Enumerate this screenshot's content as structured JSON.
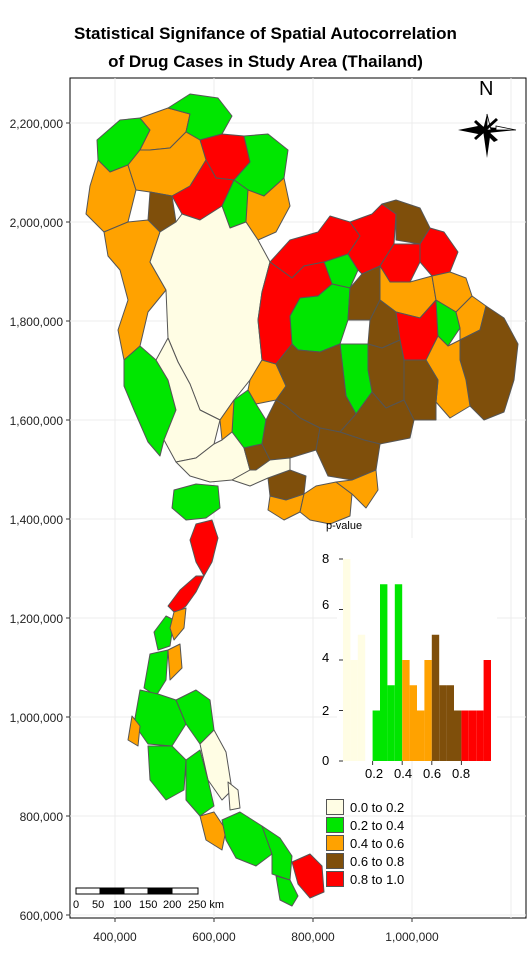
{
  "title": {
    "line1": "Statistical Signifance of Spatial Autocorrelation",
    "line2": "of Drug Cases in Study Area (Thailand)"
  },
  "north_arrow": {
    "label": "N"
  },
  "y_ticks": [
    "2,200,000",
    "2,000,000",
    "1,800,000",
    "1,600,000",
    "1,400,000",
    "1,200,000",
    "1,000,000",
    "800,000",
    "600,000"
  ],
  "x_ticks": [
    "400,000",
    "600,000",
    "800,000",
    "1,000,000"
  ],
  "legend": {
    "items": [
      {
        "label": "0.0 to 0.2",
        "color": "#fffde4"
      },
      {
        "label": "0.2 to 0.4",
        "color": "#00e600"
      },
      {
        "label": "0.4 to 0.6",
        "color": "#ffa200"
      },
      {
        "label": "0.6 to 0.8",
        "color": "#7f4f0b"
      },
      {
        "label": "0.8 to 1.0",
        "color": "#ff0000"
      }
    ]
  },
  "histogram": {
    "title": "p-value",
    "y_ticks": [
      "8",
      "6",
      "4",
      "2",
      "0"
    ],
    "x_ticks": [
      "0.2",
      "0.4",
      "0.6",
      "0.8"
    ]
  },
  "scale_bar": {
    "labels": [
      "0",
      "50",
      "100",
      "150",
      "200",
      "250 km"
    ]
  },
  "chart_data": {
    "type": "histogram",
    "title": "p-value",
    "xlim": [
      0,
      1
    ],
    "ylim": [
      0,
      8.5
    ],
    "bin_width": 0.05,
    "bins": [
      {
        "x0": 0.0,
        "count": 8,
        "color": "#fffde4"
      },
      {
        "x0": 0.05,
        "count": 4,
        "color": "#fffde4"
      },
      {
        "x0": 0.1,
        "count": 5,
        "color": "#fffde4"
      },
      {
        "x0": 0.15,
        "count": 0,
        "color": "#fffde4"
      },
      {
        "x0": 0.2,
        "count": 2,
        "color": "#00e600"
      },
      {
        "x0": 0.25,
        "count": 7,
        "color": "#00e600"
      },
      {
        "x0": 0.3,
        "count": 3,
        "color": "#00e600"
      },
      {
        "x0": 0.35,
        "count": 7,
        "color": "#00e600"
      },
      {
        "x0": 0.4,
        "count": 4,
        "color": "#ffa200"
      },
      {
        "x0": 0.45,
        "count": 3,
        "color": "#ffa200"
      },
      {
        "x0": 0.5,
        "count": 2,
        "color": "#ffa200"
      },
      {
        "x0": 0.55,
        "count": 4,
        "color": "#ffa200"
      },
      {
        "x0": 0.6,
        "count": 5,
        "color": "#7f4f0b"
      },
      {
        "x0": 0.65,
        "count": 3,
        "color": "#7f4f0b"
      },
      {
        "x0": 0.7,
        "count": 3,
        "color": "#7f4f0b"
      },
      {
        "x0": 0.75,
        "count": 2,
        "color": "#7f4f0b"
      },
      {
        "x0": 0.8,
        "count": 2,
        "color": "#ff0000"
      },
      {
        "x0": 0.85,
        "count": 2,
        "color": "#ff0000"
      },
      {
        "x0": 0.9,
        "count": 2,
        "color": "#ff0000"
      },
      {
        "x0": 0.95,
        "count": 4,
        "color": "#ff0000"
      }
    ]
  }
}
